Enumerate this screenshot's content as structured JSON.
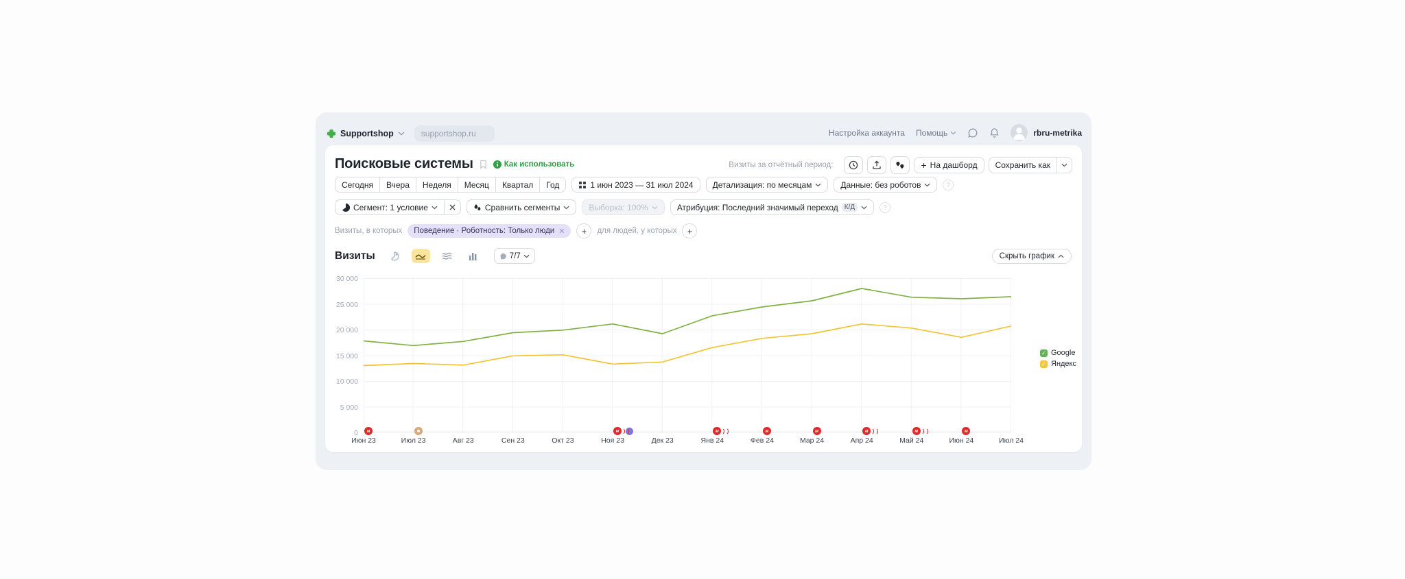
{
  "header": {
    "counter_name": "Supportshop",
    "site_url": "supportshop.ru",
    "account_settings": "Настройка аккаунта",
    "help": "Помощь",
    "username": "rbru-metrika"
  },
  "report": {
    "title": "Поисковые системы",
    "how_to_use": "Как использовать",
    "visits_period_label": "Визиты за отчётный период:",
    "dashboard_button": "На дашборд",
    "save_as_button": "Сохранить как",
    "periods": [
      "Сегодня",
      "Вчера",
      "Неделя",
      "Месяц",
      "Квартал",
      "Год"
    ],
    "date_range": "1 июн 2023 — 31 июл 2024",
    "detalization_button": "Детализация: по месяцам",
    "data_button": "Данные: без роботов",
    "segment_button": "Сегмент: 1 условие",
    "compare_button": "Сравнить сегменты",
    "sampling_button": "Выборка: 100%",
    "attribution_button": "Атрибуция: Последний значимый переход",
    "attribution_badge": "К/Д",
    "visits_in_which_label": "Визиты, в которых",
    "segment_chip": "Поведение · Роботность: Только люди",
    "for_people_label": "для людей, у которых",
    "metric_title": "Визиты",
    "series_count": "7/7",
    "hide_chart_button": "Скрыть график"
  },
  "chart_data": {
    "type": "line",
    "categories": [
      "Июн 23",
      "Июл 23",
      "Авг 23",
      "Сен 23",
      "Окт 23",
      "Ноя 23",
      "Дек 23",
      "Янв 24",
      "Фев 24",
      "Мар 24",
      "Апр 24",
      "Май 24",
      "Июн 24",
      "Июл 24"
    ],
    "series": [
      {
        "name": "Google",
        "color": "#7fb143",
        "legend_color": "#67b05a",
        "values": [
          17800,
          16900,
          17700,
          19400,
          19900,
          21100,
          19200,
          22700,
          24400,
          25600,
          28000,
          26300,
          26000,
          26400
        ]
      },
      {
        "name": "Яндекс",
        "color": "#f2c433",
        "legend_color": "#f0c643",
        "values": [
          13000,
          13400,
          13100,
          14900,
          15100,
          13300,
          13700,
          16500,
          18300,
          19200,
          21100,
          20300,
          18500,
          20700
        ]
      }
    ],
    "xlabel": "",
    "ylabel": "",
    "ylim": [
      0,
      30000
    ],
    "yticks": [
      0,
      5000,
      10000,
      15000,
      20000,
      25000,
      30000
    ],
    "ytick_labels": [
      "0",
      "5 000",
      "10 000",
      "15 000",
      "20 000",
      "25 000",
      "30 000"
    ],
    "grid": true,
    "legend_position": "right",
    "annotations": [
      {
        "category": "Июн 23",
        "index": 0,
        "style": "red"
      },
      {
        "category": "Июл 23",
        "index": 1,
        "style": "tan"
      },
      {
        "category": "Ноя 23",
        "index": 5,
        "style": "red-stack-purple"
      },
      {
        "category": "Янв 24",
        "index": 7,
        "style": "red-stack"
      },
      {
        "category": "Фев 24",
        "index": 8,
        "style": "red"
      },
      {
        "category": "Мар 24",
        "index": 9,
        "style": "red"
      },
      {
        "category": "Апр 24",
        "index": 10,
        "style": "red-stack"
      },
      {
        "category": "Май 24",
        "index": 11,
        "style": "red-stack"
      },
      {
        "category": "Июн 24",
        "index": 12,
        "style": "red"
      }
    ]
  }
}
